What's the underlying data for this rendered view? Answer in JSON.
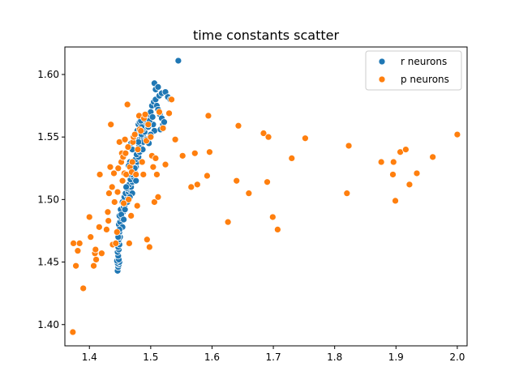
{
  "chart_data": {
    "type": "scatter",
    "title": "time constants scatter",
    "xlabel": "",
    "ylabel": "",
    "xlim": [
      1.36,
      2.016
    ],
    "ylim": [
      1.383,
      1.622
    ],
    "xticks": [
      1.4,
      1.5,
      1.6,
      1.7,
      1.8,
      1.9,
      2.0
    ],
    "xtick_labels": [
      "1.4",
      "1.5",
      "1.6",
      "1.7",
      "1.8",
      "1.9",
      "2.0"
    ],
    "yticks": [
      1.4,
      1.45,
      1.5,
      1.55,
      1.6
    ],
    "ytick_labels": [
      "1.40",
      "1.45",
      "1.50",
      "1.55",
      "1.60"
    ],
    "grid": false,
    "legend": "top-right",
    "series": [
      {
        "name": "r neurons",
        "color": "#1f77b4",
        "points": [
          [
            1.446,
            1.443
          ],
          [
            1.447,
            1.446
          ],
          [
            1.448,
            1.448
          ],
          [
            1.446,
            1.449
          ],
          [
            1.449,
            1.45
          ],
          [
            1.445,
            1.451
          ],
          [
            1.448,
            1.452
          ],
          [
            1.447,
            1.455
          ],
          [
            1.446,
            1.458
          ],
          [
            1.448,
            1.46
          ],
          [
            1.447,
            1.462
          ],
          [
            1.449,
            1.464
          ],
          [
            1.446,
            1.466
          ],
          [
            1.448,
            1.468
          ],
          [
            1.45,
            1.47
          ],
          [
            1.447,
            1.472
          ],
          [
            1.449,
            1.474
          ],
          [
            1.451,
            1.477
          ],
          [
            1.448,
            1.48
          ],
          [
            1.45,
            1.482
          ],
          [
            1.452,
            1.485
          ],
          [
            1.449,
            1.487
          ],
          [
            1.453,
            1.489
          ],
          [
            1.455,
            1.49
          ],
          [
            1.451,
            1.492
          ],
          [
            1.456,
            1.494
          ],
          [
            1.458,
            1.496
          ],
          [
            1.454,
            1.498
          ],
          [
            1.46,
            1.5
          ],
          [
            1.457,
            1.502
          ],
          [
            1.462,
            1.503
          ],
          [
            1.459,
            1.505
          ],
          [
            1.464,
            1.506
          ],
          [
            1.466,
            1.508
          ],
          [
            1.461,
            1.509
          ],
          [
            1.468,
            1.51
          ],
          [
            1.465,
            1.512
          ],
          [
            1.47,
            1.514
          ],
          [
            1.467,
            1.516
          ],
          [
            1.472,
            1.518
          ],
          [
            1.469,
            1.52
          ],
          [
            1.474,
            1.522
          ],
          [
            1.471,
            1.524
          ],
          [
            1.476,
            1.526
          ],
          [
            1.473,
            1.528
          ],
          [
            1.478,
            1.53
          ],
          [
            1.475,
            1.532
          ],
          [
            1.48,
            1.534
          ],
          [
            1.477,
            1.536
          ],
          [
            1.482,
            1.538
          ],
          [
            1.479,
            1.54
          ],
          [
            1.484,
            1.542
          ],
          [
            1.481,
            1.544
          ],
          [
            1.486,
            1.546
          ],
          [
            1.483,
            1.548
          ],
          [
            1.488,
            1.55
          ],
          [
            1.485,
            1.552
          ],
          [
            1.49,
            1.554
          ],
          [
            1.487,
            1.556
          ],
          [
            1.492,
            1.558
          ],
          [
            1.489,
            1.56
          ],
          [
            1.494,
            1.562
          ],
          [
            1.491,
            1.564
          ],
          [
            1.496,
            1.566
          ],
          [
            1.475,
            1.548
          ],
          [
            1.478,
            1.555
          ],
          [
            1.48,
            1.56
          ],
          [
            1.482,
            1.562
          ],
          [
            1.485,
            1.558
          ],
          [
            1.488,
            1.546
          ],
          [
            1.47,
            1.54
          ],
          [
            1.472,
            1.55
          ],
          [
            1.468,
            1.545
          ],
          [
            1.466,
            1.53
          ],
          [
            1.474,
            1.525
          ],
          [
            1.476,
            1.515
          ],
          [
            1.463,
            1.52
          ],
          [
            1.46,
            1.51
          ],
          [
            1.498,
            1.568
          ],
          [
            1.5,
            1.57
          ],
          [
            1.502,
            1.575
          ],
          [
            1.505,
            1.578
          ],
          [
            1.508,
            1.58
          ],
          [
            1.51,
            1.575
          ],
          [
            1.512,
            1.572
          ],
          [
            1.515,
            1.568
          ],
          [
            1.518,
            1.565
          ],
          [
            1.52,
            1.56
          ],
          [
            1.504,
            1.56
          ],
          [
            1.506,
            1.555
          ],
          [
            1.5,
            1.552
          ],
          [
            1.496,
            1.558
          ],
          [
            1.514,
            1.583
          ],
          [
            1.518,
            1.585
          ],
          [
            1.524,
            1.586
          ],
          [
            1.528,
            1.582
          ],
          [
            1.532,
            1.58
          ],
          [
            1.508,
            1.588
          ],
          [
            1.506,
            1.593
          ],
          [
            1.512,
            1.59
          ],
          [
            1.498,
            1.563
          ],
          [
            1.503,
            1.566
          ],
          [
            1.522,
            1.562
          ],
          [
            1.516,
            1.556
          ],
          [
            1.545,
            1.611
          ],
          [
            1.452,
            1.488
          ],
          [
            1.454,
            1.478
          ],
          [
            1.456,
            1.484
          ],
          [
            1.458,
            1.492
          ],
          [
            1.462,
            1.498
          ],
          [
            1.447,
            1.47
          ],
          [
            1.449,
            1.476
          ],
          [
            1.484,
            1.563
          ],
          [
            1.487,
            1.54
          ],
          [
            1.493,
            1.548
          ],
          [
            1.497,
            1.545
          ],
          [
            1.48,
            1.546
          ],
          [
            1.464,
            1.527
          ],
          [
            1.47,
            1.505
          ],
          [
            1.466,
            1.502
          ]
        ]
      },
      {
        "name": "p neurons",
        "color": "#ff7f0e",
        "points": [
          [
            1.373,
            1.394
          ],
          [
            1.39,
            1.429
          ],
          [
            1.374,
            1.465
          ],
          [
            1.378,
            1.447
          ],
          [
            1.381,
            1.459
          ],
          [
            1.384,
            1.465
          ],
          [
            1.4,
            1.486
          ],
          [
            1.402,
            1.47
          ],
          [
            1.407,
            1.447
          ],
          [
            1.409,
            1.457
          ],
          [
            1.41,
            1.46
          ],
          [
            1.411,
            1.452
          ],
          [
            1.416,
            1.478
          ],
          [
            1.417,
            1.52
          ],
          [
            1.42,
            1.457
          ],
          [
            1.428,
            1.476
          ],
          [
            1.43,
            1.49
          ],
          [
            1.431,
            1.483
          ],
          [
            1.432,
            1.505
          ],
          [
            1.434,
            1.526
          ],
          [
            1.435,
            1.56
          ],
          [
            1.437,
            1.51
          ],
          [
            1.438,
            1.464
          ],
          [
            1.44,
            1.521
          ],
          [
            1.441,
            1.498
          ],
          [
            1.443,
            1.465
          ],
          [
            1.445,
            1.474
          ],
          [
            1.446,
            1.506
          ],
          [
            1.447,
            1.525
          ],
          [
            1.449,
            1.546
          ],
          [
            1.452,
            1.53
          ],
          [
            1.453,
            1.537
          ],
          [
            1.454,
            1.515
          ],
          [
            1.455,
            1.534
          ],
          [
            1.456,
            1.497
          ],
          [
            1.457,
            1.521
          ],
          [
            1.458,
            1.548
          ],
          [
            1.459,
            1.537
          ],
          [
            1.46,
            1.52
          ],
          [
            1.462,
            1.576
          ],
          [
            1.463,
            1.542
          ],
          [
            1.464,
            1.5
          ],
          [
            1.465,
            1.465
          ],
          [
            1.466,
            1.526
          ],
          [
            1.468,
            1.487
          ],
          [
            1.469,
            1.522
          ],
          [
            1.47,
            1.53
          ],
          [
            1.471,
            1.546
          ],
          [
            1.472,
            1.55
          ],
          [
            1.474,
            1.552
          ],
          [
            1.476,
            1.52
          ],
          [
            1.478,
            1.495
          ],
          [
            1.479,
            1.54
          ],
          [
            1.481,
            1.567
          ],
          [
            1.482,
            1.556
          ],
          [
            1.484,
            1.555
          ],
          [
            1.486,
            1.53
          ],
          [
            1.488,
            1.52
          ],
          [
            1.489,
            1.565
          ],
          [
            1.491,
            1.568
          ],
          [
            1.493,
            1.547
          ],
          [
            1.494,
            1.468
          ],
          [
            1.496,
            1.56
          ],
          [
            1.498,
            1.462
          ],
          [
            1.5,
            1.55
          ],
          [
            1.502,
            1.535
          ],
          [
            1.504,
            1.526
          ],
          [
            1.506,
            1.498
          ],
          [
            1.508,
            1.533
          ],
          [
            1.51,
            1.52
          ],
          [
            1.512,
            1.502
          ],
          [
            1.514,
            1.57
          ],
          [
            1.52,
            1.557
          ],
          [
            1.524,
            1.528
          ],
          [
            1.53,
            1.569
          ],
          [
            1.534,
            1.58
          ],
          [
            1.54,
            1.548
          ],
          [
            1.552,
            1.535
          ],
          [
            1.566,
            1.51
          ],
          [
            1.572,
            1.537
          ],
          [
            1.576,
            1.512
          ],
          [
            1.592,
            1.519
          ],
          [
            1.594,
            1.567
          ],
          [
            1.596,
            1.538
          ],
          [
            1.626,
            1.482
          ],
          [
            1.64,
            1.515
          ],
          [
            1.643,
            1.559
          ],
          [
            1.66,
            1.505
          ],
          [
            1.684,
            1.553
          ],
          [
            1.69,
            1.514
          ],
          [
            1.692,
            1.55
          ],
          [
            1.699,
            1.486
          ],
          [
            1.707,
            1.476
          ],
          [
            1.73,
            1.533
          ],
          [
            1.752,
            1.549
          ],
          [
            1.82,
            1.505
          ],
          [
            1.823,
            1.543
          ],
          [
            1.876,
            1.53
          ],
          [
            1.895,
            1.52
          ],
          [
            1.896,
            1.53
          ],
          [
            1.899,
            1.499
          ],
          [
            1.907,
            1.538
          ],
          [
            1.916,
            1.54
          ],
          [
            1.922,
            1.512
          ],
          [
            1.934,
            1.521
          ],
          [
            1.96,
            1.534
          ],
          [
            2.0,
            1.552
          ]
        ]
      }
    ]
  }
}
